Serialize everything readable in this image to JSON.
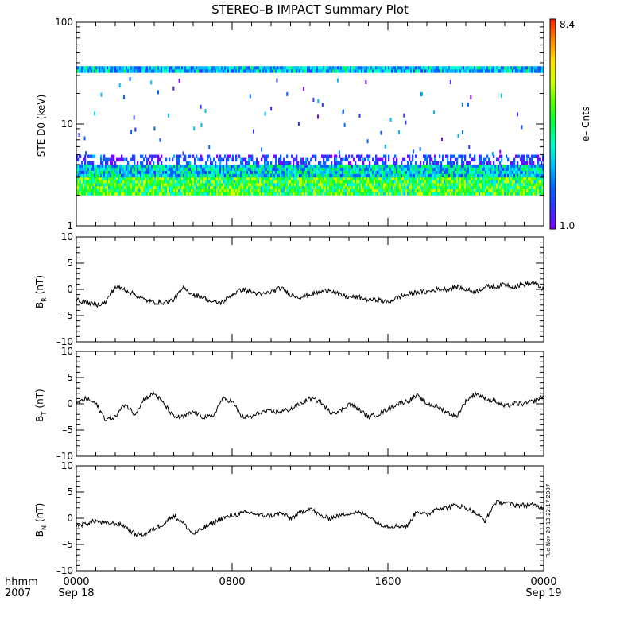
{
  "title": "STEREO–B IMPACT Summary Plot",
  "timestamp": "Tue Nov 20 13:22:17 2007",
  "time_axis": {
    "corner_top": "hhmm",
    "corner_bottom": "2007",
    "major_ticks": [
      {
        "label": "0000",
        "sub": "Sep 18",
        "hour": 0
      },
      {
        "label": "0800",
        "sub": "",
        "hour": 8
      },
      {
        "label": "1600",
        "sub": "",
        "hour": 16
      },
      {
        "label": "0000",
        "sub": "Sep 19",
        "hour": 24
      }
    ],
    "range_hours": [
      0,
      24
    ]
  },
  "colorbar": {
    "label": "e– Cnts",
    "max_label": "8.4",
    "min_label": "1.0",
    "colors": [
      "#7f00ff",
      "#3333ff",
      "#0066ff",
      "#00bbff",
      "#00ffcc",
      "#00ff44",
      "#55ff00",
      "#ccff00",
      "#ffdd00",
      "#ff8800",
      "#ff2200"
    ]
  },
  "spectrogram": {
    "ylabel": "STE D0 (keV)",
    "ticks": [
      "1",
      "10",
      "100"
    ],
    "ylim": [
      1,
      100
    ],
    "scale": "log"
  },
  "chart_data": [
    {
      "type": "heatmap",
      "title": "STEREO–B IMPACT Summary Plot",
      "ylabel": "STE D0 (keV)",
      "xlim_hours": [
        0,
        24
      ],
      "ylim_keV": [
        1,
        100
      ],
      "yscale": "log",
      "color_range": [
        1.0,
        8.4
      ],
      "bands": [
        {
          "energy_keV_min": 2.0,
          "energy_keV_max": 3.0,
          "count_range": [
            3.5,
            6.5
          ]
        },
        {
          "energy_keV_min": 3.0,
          "energy_keV_max": 4.0,
          "count_range": [
            2.0,
            5.0
          ]
        },
        {
          "energy_keV_min": 4.0,
          "energy_keV_max": 5.0,
          "count_range": [
            1.0,
            3.0
          ]
        },
        {
          "energy_keV_min": 32.0,
          "energy_keV_max": 37.0,
          "count_range": [
            2.0,
            4.5
          ]
        }
      ]
    },
    {
      "type": "line",
      "ylabel": "B_R (nT)",
      "ylim": [
        -10,
        10
      ],
      "x_hours": [
        0,
        0.5,
        1,
        1.5,
        2,
        2.5,
        3,
        3.5,
        4,
        4.5,
        5,
        5.5,
        6,
        6.5,
        7,
        7.5,
        8,
        8.5,
        9,
        9.5,
        10,
        10.5,
        11,
        11.5,
        12,
        12.5,
        13,
        13.5,
        14,
        14.5,
        15,
        15.5,
        16,
        16.5,
        17,
        17.5,
        18,
        18.5,
        19,
        19.5,
        20,
        20.5,
        21,
        21.5,
        22,
        22.5,
        23,
        23.5,
        24
      ],
      "values": [
        -2,
        -2.5,
        -3,
        -2.5,
        0.5,
        0,
        -1,
        -2,
        -2.5,
        -2.5,
        -2,
        0.2,
        -1,
        -1.5,
        -2.5,
        -2.5,
        -1,
        0,
        -0.5,
        -1,
        -0.5,
        0.3,
        -1,
        -1.5,
        -1,
        -0.5,
        0,
        -1,
        -1.5,
        -1.5,
        -2,
        -2,
        -2.5,
        -1.5,
        -1,
        -0.5,
        -0.5,
        0,
        0,
        0.5,
        0,
        -0.5,
        0.5,
        0.5,
        1,
        0.5,
        1,
        1.2,
        0
      ]
    },
    {
      "type": "line",
      "ylabel": "B_T (nT)",
      "ylim": [
        -10,
        10
      ],
      "x_hours": [
        0,
        0.5,
        1,
        1.5,
        2,
        2.5,
        3,
        3.5,
        4,
        4.5,
        5,
        5.5,
        6,
        6.5,
        7,
        7.5,
        8,
        8.5,
        9,
        9.5,
        10,
        10.5,
        11,
        11.5,
        12,
        12.5,
        13,
        13.5,
        14,
        14.5,
        15,
        15.5,
        16,
        16.5,
        17,
        17.5,
        18,
        18.5,
        19,
        19.5,
        20,
        20.5,
        21,
        21.5,
        22,
        22.5,
        23,
        23.5,
        24
      ],
      "values": [
        0,
        1,
        0,
        -3,
        -2.5,
        0,
        -2,
        1,
        2,
        0,
        -2.5,
        -2.5,
        -1.5,
        -2.5,
        -2.5,
        1,
        0.5,
        -2.5,
        -2.5,
        -1.5,
        -1.5,
        -1.5,
        -1,
        0,
        1,
        0.5,
        -1.5,
        -1.5,
        0,
        -1,
        -2.5,
        -2,
        -1,
        0,
        0.5,
        1.5,
        0,
        -0.5,
        -1.5,
        -2.5,
        0.5,
        2,
        1,
        0.5,
        -0.5,
        0,
        0,
        0.5,
        1.5
      ]
    },
    {
      "type": "line",
      "ylabel": "B_N (nT)",
      "ylim": [
        -10,
        10
      ],
      "x_hours": [
        0,
        0.5,
        1,
        1.5,
        2,
        2.5,
        3,
        3.5,
        4,
        4.5,
        5,
        5.5,
        6,
        6.5,
        7,
        7.5,
        8,
        8.5,
        9,
        9.5,
        10,
        10.5,
        11,
        11.5,
        12,
        12.5,
        13,
        13.5,
        14,
        14.5,
        15,
        15.5,
        16,
        16.5,
        17,
        17.5,
        18,
        18.5,
        19,
        19.5,
        20,
        20.5,
        21,
        21.5,
        22,
        22.5,
        23,
        23.5,
        24
      ],
      "values": [
        -1.5,
        -1,
        -0.5,
        -1,
        -1,
        -1.5,
        -3,
        -3,
        -2,
        -1,
        0.5,
        -1,
        -3,
        -2,
        -1,
        0,
        0.5,
        1,
        1,
        0.5,
        0.5,
        1,
        0,
        1,
        2,
        0.5,
        0,
        0.5,
        1,
        1,
        0.5,
        -1,
        -1.5,
        -1.5,
        -1.5,
        1.5,
        0.5,
        2,
        2,
        2.5,
        2,
        1,
        -0.5,
        3,
        3,
        2.5,
        2.5,
        2.5,
        2
      ]
    }
  ],
  "mag_panels": [
    {
      "id": "br",
      "label_main": "B",
      "label_sub": "R",
      "label_unit": "(nT)",
      "ticks": [
        "10",
        "5",
        "0",
        "–5",
        "–10"
      ]
    },
    {
      "id": "bt",
      "label_main": "B",
      "label_sub": "T",
      "label_unit": "(nT)",
      "ticks": [
        "10",
        "5",
        "0",
        "–5",
        "–10"
      ]
    },
    {
      "id": "bn",
      "label_main": "B",
      "label_sub": "N",
      "label_unit": "(nT)",
      "ticks": [
        "10",
        "5",
        "0",
        "–5",
        "–10"
      ]
    }
  ]
}
